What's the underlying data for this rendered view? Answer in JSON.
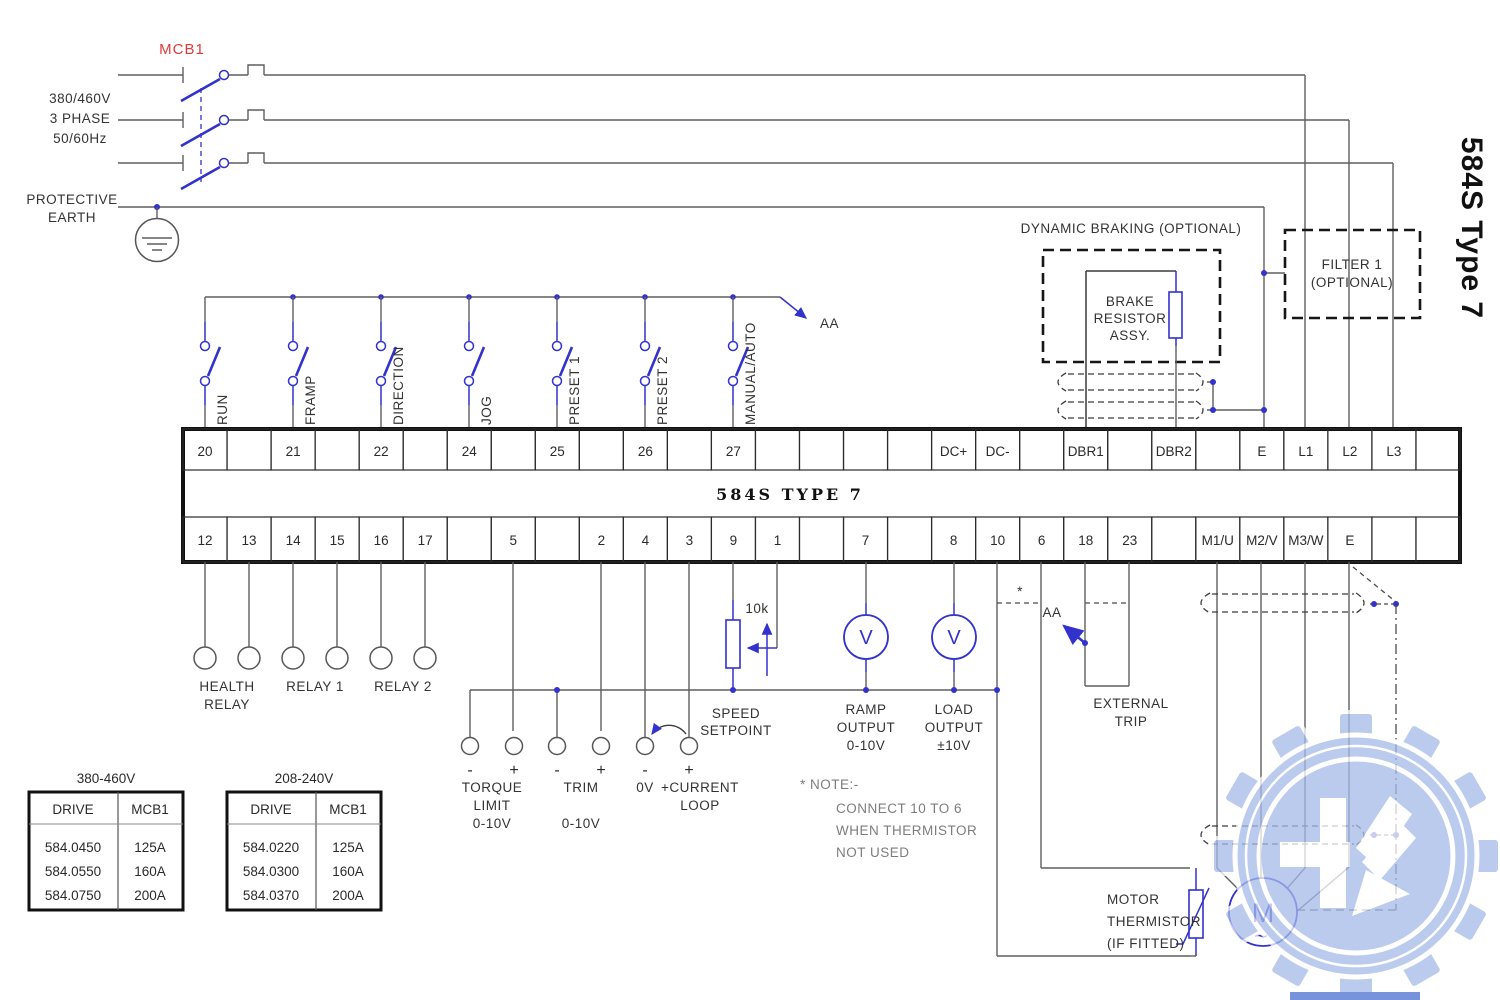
{
  "side_title": "584S Type 7",
  "supply": {
    "mcb_label": "MCB1",
    "lines": [
      "380/460V",
      "3 PHASE",
      "50/60Hz"
    ],
    "earth": [
      "PROTECTIVE",
      "EARTH"
    ]
  },
  "switches": {
    "aa_label": "AA",
    "items": [
      "RUN",
      "FRAMP",
      "DIRECTION",
      "JOG",
      "PRESET 1",
      "PRESET 2",
      "MANUAL/AUTO"
    ]
  },
  "strip": {
    "center_label": "584S TYPE 7",
    "top": [
      "20",
      "",
      "21",
      "",
      "22",
      "",
      "24",
      "",
      "25",
      "",
      "26",
      "",
      "27",
      "",
      "",
      "",
      "",
      "DC+",
      "DC-",
      "",
      "DBR1",
      "",
      "DBR2",
      "",
      "E",
      "L1",
      "L2",
      "L3",
      ""
    ],
    "bottom": [
      "12",
      "13",
      "14",
      "15",
      "16",
      "17",
      "",
      "5",
      "",
      "2",
      "4",
      "3",
      "9",
      "1",
      "",
      "7",
      "",
      "8",
      "10",
      "6",
      "18",
      "23",
      "",
      "M1/U",
      "M2/V",
      "M3/W",
      "E",
      "",
      ""
    ]
  },
  "relays": {
    "health1": "HEALTH",
    "health2": "RELAY",
    "relay1": "RELAY 1",
    "relay2": "RELAY 2"
  },
  "analog": {
    "signs": [
      "-",
      "+",
      "-",
      "+",
      "-",
      "+"
    ],
    "torque": [
      "TORQUE",
      "LIMIT",
      "0-10V"
    ],
    "trim": [
      "TRIM",
      "0-10V"
    ],
    "loop": [
      "0V",
      "+CURRENT",
      "LOOP"
    ],
    "pot_value": "10k",
    "speed": [
      "SPEED",
      "SETPOINT"
    ],
    "ramp": [
      "RAMP",
      "OUTPUT",
      "0-10V"
    ],
    "load": [
      "LOAD",
      "OUTPUT",
      "±10V"
    ],
    "voltmeter": "V"
  },
  "braking": {
    "title": "DYNAMIC BRAKING (OPTIONAL)",
    "brake": [
      "BRAKE",
      "RESISTOR",
      "ASSY."
    ]
  },
  "filter": [
    "FILTER 1",
    "(OPTIONAL)"
  ],
  "bottom_right": {
    "external": [
      "EXTERNAL",
      "TRIP"
    ],
    "aa_label": "AA",
    "star": "*",
    "note": [
      "* NOTE:-",
      "CONNECT 10 TO 6",
      "WHEN THERMISTOR",
      "NOT USED"
    ],
    "thermistor": [
      "MOTOR",
      "THERMISTOR",
      "(IF FITTED)"
    ],
    "motor": "M",
    "motor_wave": "~"
  },
  "tables": [
    {
      "title": "380-460V",
      "headers": [
        "DRIVE",
        "MCB1"
      ],
      "rows": [
        [
          "584.0450",
          "125A"
        ],
        [
          "584.0550",
          "160A"
        ],
        [
          "584.0750",
          "200A"
        ]
      ]
    },
    {
      "title": "208-240V",
      "headers": [
        "DRIVE",
        "MCB1"
      ],
      "rows": [
        [
          "584.0220",
          "125A"
        ],
        [
          "584.0300",
          "160A"
        ],
        [
          "584.0370",
          "200A"
        ]
      ]
    }
  ],
  "colors": {
    "wire_gray": "#5f5f5f",
    "schematic_blue": "#3232cd",
    "mcb_red": "#e03a3a",
    "structure_black": "#1a1a1a",
    "watermark_blue": "#a5bae8"
  }
}
